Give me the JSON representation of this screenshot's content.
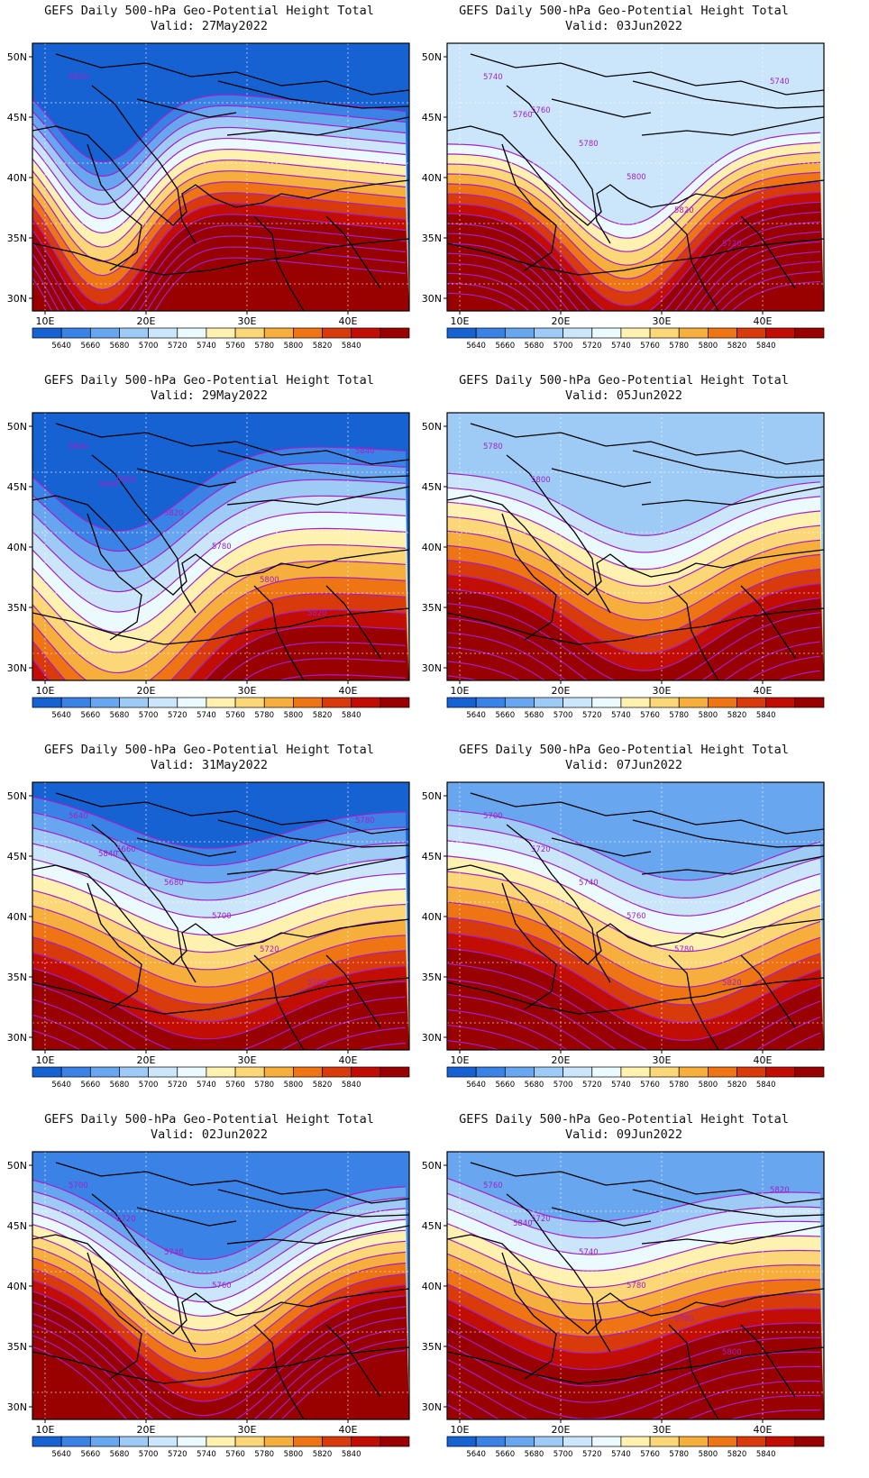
{
  "title": "GEFS Daily 500-hPa Geo-Potential Height Total",
  "lat_labels": [
    "50N",
    "45N",
    "40N",
    "35N",
    "30N"
  ],
  "lon_labels": [
    "10E",
    "20E",
    "30E",
    "40E"
  ],
  "colorbar": {
    "levels": [
      "5640",
      "5660",
      "5680",
      "5700",
      "5720",
      "5740",
      "5760",
      "5780",
      "5800",
      "5820",
      "5840"
    ],
    "colors": [
      "#1762d3",
      "#3b82e6",
      "#68a6ef",
      "#9ecbf6",
      "#cbe6fb",
      "#eafaff",
      "#fff1b0",
      "#fbd777",
      "#f6ae3c",
      "#ee7414",
      "#d93a0c",
      "#c20d05",
      "#990000"
    ]
  },
  "contour_color": "#a221c9",
  "panels": [
    {
      "valid": "Valid: 27May2022",
      "labels": [
        "5820"
      ]
    },
    {
      "valid": "Valid: 03Jun2022",
      "labels": [
        "5740",
        "5760",
        "5780",
        "5800",
        "5820",
        "5720",
        "5740",
        "5760"
      ]
    },
    {
      "valid": "Valid: 29May2022",
      "labels": [
        "5800",
        "5800",
        "5820",
        "5780",
        "5800",
        "5820",
        "5840",
        "5840"
      ]
    },
    {
      "valid": "Valid: 05Jun2022",
      "labels": [
        "5780",
        "5800"
      ]
    },
    {
      "valid": "Valid: 31May2022",
      "labels": [
        "5640",
        "5660",
        "5680",
        "5700",
        "5720",
        "5740",
        "5780",
        "5840"
      ]
    },
    {
      "valid": "Valid: 07Jun2022",
      "labels": [
        "5700",
        "5720",
        "5740",
        "5760",
        "5780",
        "5820"
      ]
    },
    {
      "valid": "Valid: 02Jun2022",
      "labels": [
        "5700",
        "5720",
        "5740",
        "5760"
      ]
    },
    {
      "valid": "Valid: 09Jun2022",
      "labels": [
        "5760",
        "5720",
        "5740",
        "5780",
        "5780",
        "5800",
        "5820",
        "5840"
      ]
    }
  ]
}
